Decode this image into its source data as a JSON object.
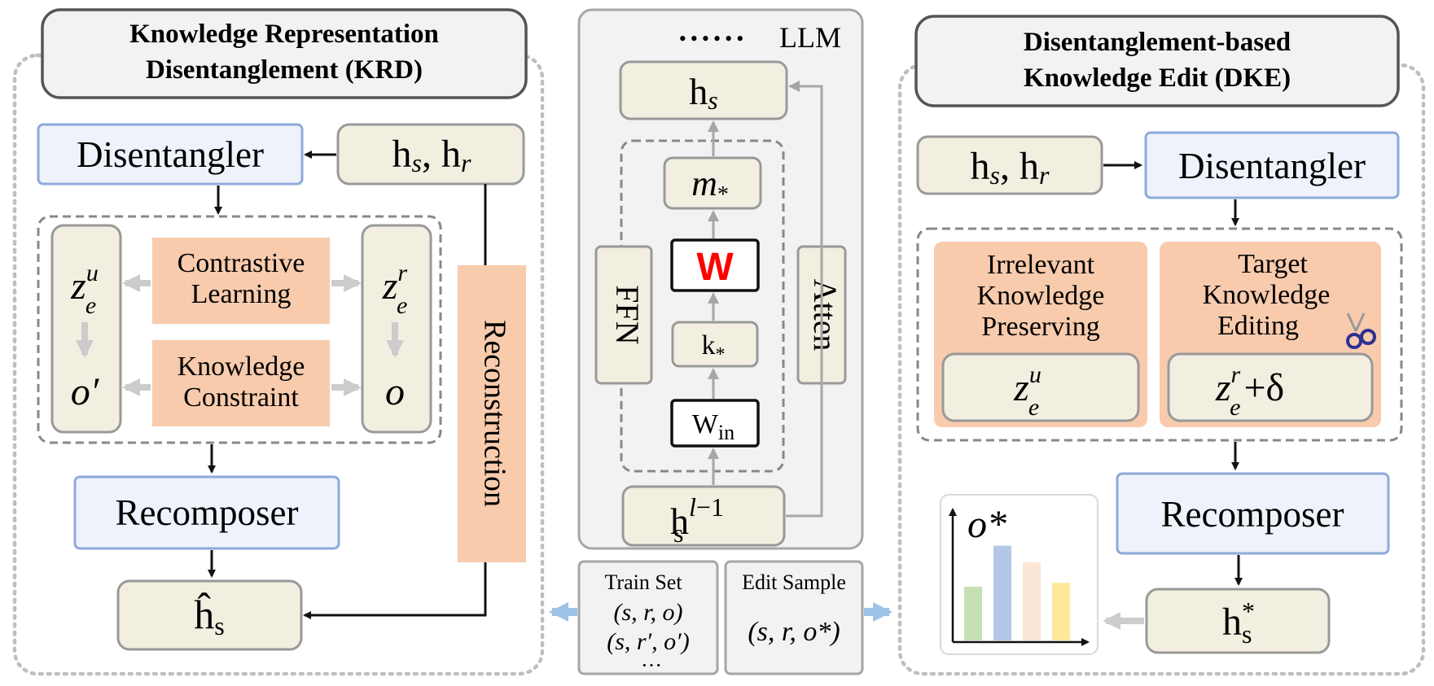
{
  "krd": {
    "title_line1": "Knowledge Representation",
    "title_line2": "Disentanglement (KRD)",
    "input": "hs, hr",
    "disentangler": "Disentangler",
    "zeu": "z",
    "zeu_sup": "u",
    "zeu_sub": "e",
    "zer": "z",
    "zer_sup": "r",
    "zer_sub": "e",
    "contrastive_line1": "Contrastive",
    "contrastive_line2": "Learning",
    "constraint_line1": "Knowledge",
    "constraint_line2": "Constraint",
    "o_prime": "o′",
    "o": "o",
    "recomposer": "Recomposer",
    "reconstruction": "Reconstruction",
    "h_hat": "ĥs"
  },
  "llm": {
    "label": "LLM",
    "dots": "••••••",
    "hs": "hs",
    "m_star": "m",
    "w": "W",
    "k_star": "k",
    "w_in": "W",
    "w_in_sub": "in",
    "h_prev": "h",
    "h_prev_sup": "l−1",
    "h_prev_sub": "s",
    "ffn": "FFN",
    "atten": "Atten"
  },
  "data": {
    "train_title": "Train Set",
    "train_line1": "(s, r, o)",
    "train_line2": "(s, r′, o′)",
    "train_dots": "···",
    "edit_title": "Edit Sample",
    "edit_line1": "(s, r, o*)"
  },
  "dke": {
    "title_line1": "Disentanglement-based",
    "title_line2": "Knowledge Edit (DKE)",
    "input": "hs, hr",
    "disentangler": "Disentangler",
    "irrelevant_line1": "Irrelevant",
    "irrelevant_line2": "Knowledge",
    "irrelevant_line3": "Preserving",
    "target_line1": "Target",
    "target_line2": "Knowledge",
    "target_line3": "Editing",
    "zeu": "z",
    "zer_plus": "+δ",
    "recomposer": "Recomposer",
    "h_star": "h",
    "o_star": "o*"
  },
  "chart_data": {
    "type": "bar",
    "title": "o*",
    "categories": [
      "",
      "",
      "",
      ""
    ],
    "values": [
      0.55,
      0.97,
      0.8,
      0.59
    ],
    "colors": [
      "#c5e0b4",
      "#b4c7e7",
      "#fbe5d6",
      "#ffe699"
    ],
    "ylim": [
      0,
      1
    ]
  },
  "colors": {
    "beige": "#f2efe1",
    "blue_fill": "#eef2fa",
    "blue_stroke": "#8eaadb",
    "orange": "#f8cbad",
    "red_w": "#ff0000"
  }
}
